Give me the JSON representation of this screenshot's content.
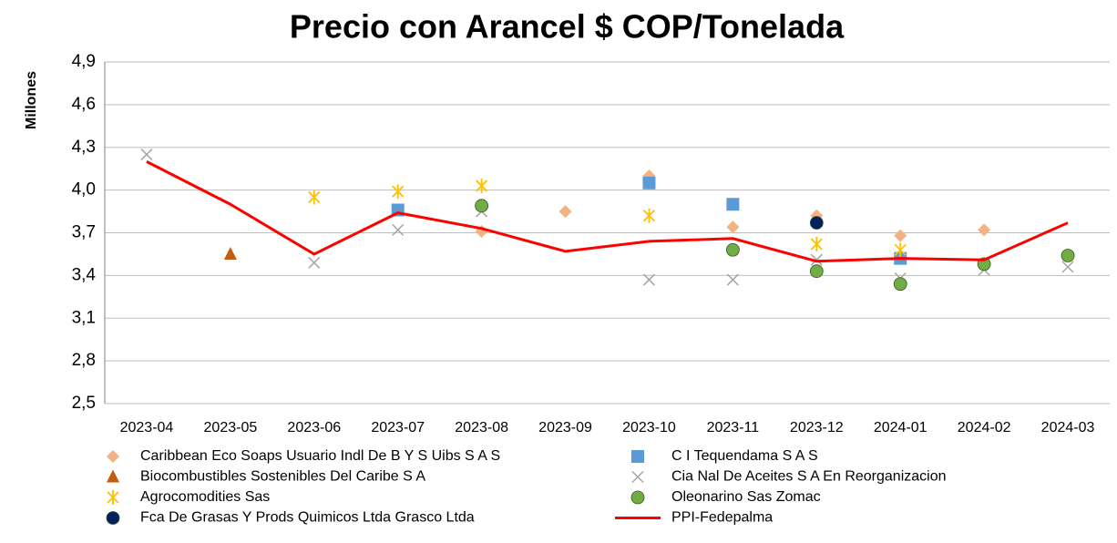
{
  "chart_data": {
    "type": "line",
    "title": "Precio con Arancel $ COP/Tonelada",
    "ylabel": "Millones",
    "categories": [
      "2023-04",
      "2023-05",
      "2023-06",
      "2023-07",
      "2023-08",
      "2023-09",
      "2023-10",
      "2023-11",
      "2023-12",
      "2024-01",
      "2024-02",
      "2024-03"
    ],
    "ylim": [
      2.5,
      4.9
    ],
    "yticks": [
      {
        "value": 2.5,
        "label": "2,5"
      },
      {
        "value": 2.8,
        "label": "2,8"
      },
      {
        "value": 3.1,
        "label": "3,1"
      },
      {
        "value": 3.4,
        "label": "3,4"
      },
      {
        "value": 3.7,
        "label": "3,7"
      },
      {
        "value": 4.0,
        "label": "4,0"
      },
      {
        "value": 4.3,
        "label": "4,3"
      },
      {
        "value": 4.6,
        "label": "4,6"
      },
      {
        "value": 4.9,
        "label": "4,9"
      }
    ],
    "grid": true,
    "series": [
      {
        "name": "Caribbean Eco Soaps Usuario Indl De B Y S Uibs S A S",
        "color": "#F4B183",
        "marker": "diamond",
        "values": [
          null,
          null,
          null,
          null,
          3.71,
          3.85,
          4.1,
          3.74,
          3.82,
          3.68,
          3.72,
          null
        ]
      },
      {
        "name": "C I Tequendama S A S",
        "color": "#5B9BD5",
        "marker": "square",
        "values": [
          null,
          null,
          null,
          3.86,
          null,
          null,
          4.05,
          3.9,
          null,
          3.52,
          null,
          null
        ]
      },
      {
        "name": "Biocombustibles Sostenibles Del Caribe S A",
        "color": "#C55A11",
        "marker": "triangle",
        "values": [
          null,
          3.55,
          null,
          null,
          null,
          null,
          null,
          null,
          null,
          null,
          null,
          null
        ]
      },
      {
        "name": "Cia Nal De Aceites S A En Reorganizacion",
        "color": "#A5A5A5",
        "marker": "x",
        "values": [
          4.25,
          null,
          3.49,
          3.72,
          3.85,
          null,
          3.37,
          3.37,
          3.51,
          3.38,
          3.44,
          3.46
        ]
      },
      {
        "name": "Agrocomodities Sas",
        "color": "#FFC000",
        "marker": "star",
        "values": [
          null,
          null,
          3.95,
          3.99,
          4.03,
          null,
          3.82,
          null,
          3.62,
          3.58,
          null,
          null
        ]
      },
      {
        "name": "Oleonarino Sas Zomac",
        "color": "#70AD47",
        "marker": "circle",
        "values": [
          null,
          null,
          null,
          null,
          3.89,
          null,
          null,
          3.58,
          3.43,
          3.34,
          3.48,
          3.54
        ]
      },
      {
        "name": "Fca De Grasas Y Prods Quimicos Ltda Grasco Ltda",
        "color": "#002060",
        "marker": "circle",
        "values": [
          null,
          null,
          null,
          null,
          null,
          null,
          null,
          null,
          3.77,
          null,
          null,
          null
        ]
      },
      {
        "name": "PPI-Fedepalma",
        "color": "#FF0000",
        "marker": "line",
        "values": [
          4.2,
          3.9,
          3.55,
          3.84,
          3.73,
          3.57,
          3.64,
          3.66,
          3.5,
          3.52,
          3.51,
          3.77
        ]
      }
    ]
  }
}
